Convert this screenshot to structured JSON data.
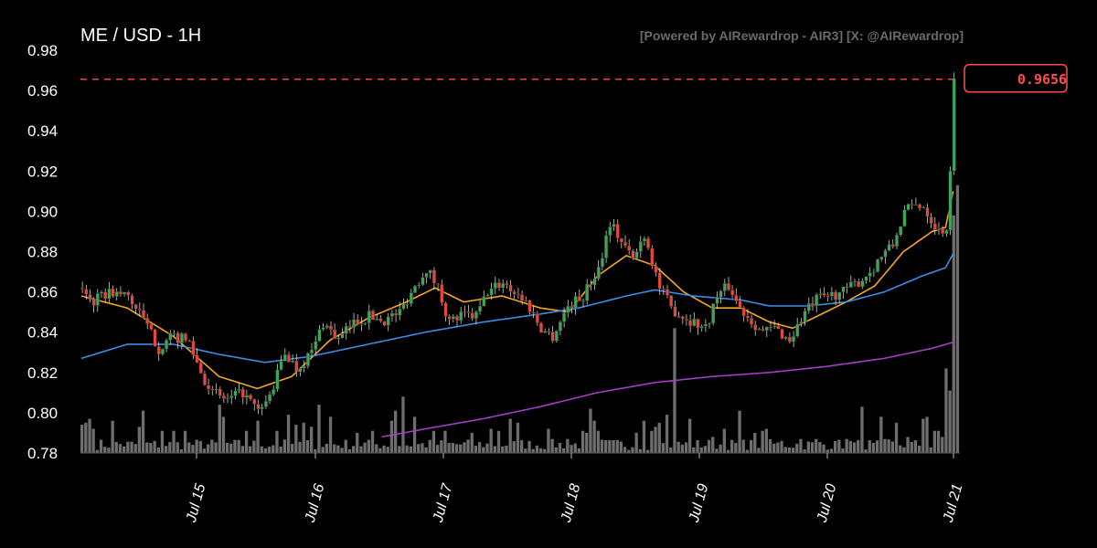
{
  "header": {
    "title": "ME / USD - 1H",
    "credit": "[Powered by AIRewardrop - AIR3] [X: @AIRewardrop]"
  },
  "colors": {
    "up": "#3fa35a",
    "down": "#e0493b",
    "volume": "#6e6e6e",
    "ma_fast": "#f5a623",
    "ma_mid": "#3a8ee6",
    "ma_slow": "#a33fc4",
    "last_price": "#ff4d4d"
  },
  "chart_data": {
    "type": "candlestick",
    "title": "ME / USD - 1H",
    "ylim": [
      0.78,
      0.98
    ],
    "y_ticks": [
      "0.98",
      "0.96",
      "0.94",
      "0.92",
      "0.90",
      "0.88",
      "0.86",
      "0.84",
      "0.82",
      "0.80",
      "0.78"
    ],
    "x_ticks": [
      "Jul 15",
      "Jul 16",
      "Jul 17",
      "Jul 18",
      "Jul 19",
      "Jul 20",
      "Jul 21"
    ],
    "last_price": "0.9656",
    "close_path": [
      [
        0,
        0.862
      ],
      [
        6,
        0.855
      ],
      [
        14,
        0.86
      ],
      [
        24,
        0.858
      ],
      [
        32,
        0.846
      ],
      [
        40,
        0.832
      ],
      [
        48,
        0.838
      ],
      [
        56,
        0.835
      ],
      [
        62,
        0.82
      ],
      [
        68,
        0.81
      ],
      [
        76,
        0.806
      ],
      [
        84,
        0.81
      ],
      [
        92,
        0.8
      ],
      [
        98,
        0.808
      ],
      [
        106,
        0.83
      ],
      [
        112,
        0.822
      ],
      [
        120,
        0.83
      ],
      [
        126,
        0.845
      ],
      [
        134,
        0.836
      ],
      [
        142,
        0.845
      ],
      [
        150,
        0.848
      ],
      [
        158,
        0.846
      ],
      [
        166,
        0.85
      ],
      [
        172,
        0.86
      ],
      [
        180,
        0.872
      ],
      [
        186,
        0.862
      ],
      [
        192,
        0.845
      ],
      [
        198,
        0.848
      ],
      [
        206,
        0.848
      ],
      [
        212,
        0.86
      ],
      [
        220,
        0.865
      ],
      [
        226,
        0.86
      ],
      [
        232,
        0.855
      ],
      [
        240,
        0.842
      ],
      [
        246,
        0.838
      ],
      [
        254,
        0.853
      ],
      [
        262,
        0.858
      ],
      [
        270,
        0.872
      ],
      [
        276,
        0.895
      ],
      [
        282,
        0.885
      ],
      [
        288,
        0.876
      ],
      [
        294,
        0.889
      ],
      [
        302,
        0.862
      ],
      [
        308,
        0.852
      ],
      [
        314,
        0.848
      ],
      [
        320,
        0.845
      ],
      [
        326,
        0.842
      ],
      [
        332,
        0.858
      ],
      [
        338,
        0.863
      ],
      [
        344,
        0.852
      ],
      [
        350,
        0.846
      ],
      [
        356,
        0.84
      ],
      [
        362,
        0.842
      ],
      [
        370,
        0.836
      ],
      [
        378,
        0.85
      ],
      [
        384,
        0.856
      ],
      [
        390,
        0.858
      ],
      [
        398,
        0.86
      ],
      [
        406,
        0.865
      ],
      [
        412,
        0.87
      ],
      [
        418,
        0.878
      ],
      [
        424,
        0.883
      ],
      [
        430,
        0.9
      ],
      [
        436,
        0.903
      ],
      [
        440,
        0.903
      ],
      [
        444,
        0.896
      ],
      [
        448,
        0.89
      ],
      [
        452,
        0.892
      ],
      [
        454,
        0.92
      ],
      [
        456,
        0.966
      ]
    ],
    "ma_fast": [
      [
        0,
        0.858
      ],
      [
        24,
        0.852
      ],
      [
        48,
        0.838
      ],
      [
        72,
        0.818
      ],
      [
        92,
        0.812
      ],
      [
        110,
        0.818
      ],
      [
        130,
        0.836
      ],
      [
        150,
        0.847
      ],
      [
        170,
        0.855
      ],
      [
        185,
        0.862
      ],
      [
        200,
        0.855
      ],
      [
        220,
        0.858
      ],
      [
        240,
        0.852
      ],
      [
        255,
        0.85
      ],
      [
        270,
        0.868
      ],
      [
        285,
        0.878
      ],
      [
        300,
        0.873
      ],
      [
        315,
        0.86
      ],
      [
        330,
        0.852
      ],
      [
        345,
        0.852
      ],
      [
        360,
        0.845
      ],
      [
        372,
        0.842
      ],
      [
        385,
        0.848
      ],
      [
        400,
        0.855
      ],
      [
        415,
        0.863
      ],
      [
        430,
        0.88
      ],
      [
        445,
        0.89
      ],
      [
        452,
        0.892
      ],
      [
        456,
        0.91
      ]
    ],
    "ma_mid": [
      [
        0,
        0.827
      ],
      [
        24,
        0.834
      ],
      [
        48,
        0.834
      ],
      [
        72,
        0.829
      ],
      [
        96,
        0.825
      ],
      [
        120,
        0.828
      ],
      [
        150,
        0.834
      ],
      [
        180,
        0.84
      ],
      [
        210,
        0.845
      ],
      [
        240,
        0.849
      ],
      [
        260,
        0.852
      ],
      [
        285,
        0.858
      ],
      [
        300,
        0.861
      ],
      [
        320,
        0.858
      ],
      [
        345,
        0.856
      ],
      [
        360,
        0.853
      ],
      [
        380,
        0.853
      ],
      [
        400,
        0.855
      ],
      [
        420,
        0.86
      ],
      [
        440,
        0.868
      ],
      [
        452,
        0.872
      ],
      [
        456,
        0.879
      ]
    ],
    "ma_slow": [
      [
        157,
        0.788
      ],
      [
        180,
        0.792
      ],
      [
        210,
        0.797
      ],
      [
        240,
        0.803
      ],
      [
        270,
        0.81
      ],
      [
        300,
        0.815
      ],
      [
        330,
        0.818
      ],
      [
        360,
        0.82
      ],
      [
        390,
        0.823
      ],
      [
        420,
        0.827
      ],
      [
        445,
        0.832
      ],
      [
        456,
        0.835
      ]
    ],
    "volume": {
      "baseline": 0.78,
      "spikes": [
        [
          1,
          0.794
        ],
        [
          2,
          0.795
        ],
        [
          4,
          0.797
        ],
        [
          6,
          0.792
        ],
        [
          17,
          0.796
        ],
        [
          30,
          0.793
        ],
        [
          32,
          0.801
        ],
        [
          42,
          0.791
        ],
        [
          48,
          0.791
        ],
        [
          55,
          0.791
        ],
        [
          72,
          0.804
        ],
        [
          74,
          0.798
        ],
        [
          86,
          0.791
        ],
        [
          92,
          0.796
        ],
        [
          102,
          0.791
        ],
        [
          108,
          0.799
        ],
        [
          112,
          0.794
        ],
        [
          116,
          0.795
        ],
        [
          120,
          0.793
        ],
        [
          125,
          0.804
        ],
        [
          130,
          0.798
        ],
        [
          144,
          0.79
        ],
        [
          152,
          0.791
        ],
        [
          162,
          0.796
        ],
        [
          165,
          0.801
        ],
        [
          169,
          0.808
        ],
        [
          175,
          0.798
        ],
        [
          185,
          0.791
        ],
        [
          190,
          0.791
        ],
        [
          205,
          0.79
        ],
        [
          214,
          0.792
        ],
        [
          219,
          0.791
        ],
        [
          224,
          0.797
        ],
        [
          228,
          0.795
        ],
        [
          245,
          0.792
        ],
        [
          255,
          0.787
        ],
        [
          262,
          0.791
        ],
        [
          265,
          0.79
        ],
        [
          268,
          0.791
        ],
        [
          270,
          0.791
        ],
        [
          266,
          0.802
        ],
        [
          268,
          0.796
        ],
        [
          290,
          0.79
        ],
        [
          294,
          0.796
        ],
        [
          299,
          0.791
        ],
        [
          301,
          0.793
        ],
        [
          302,
          0.795
        ],
        [
          306,
          0.799
        ],
        [
          310,
          0.842
        ],
        [
          311,
          0.835
        ],
        [
          318,
          0.797
        ],
        [
          330,
          0.788
        ],
        [
          337,
          0.792
        ],
        [
          345,
          0.801
        ],
        [
          352,
          0.79
        ],
        [
          356,
          0.791
        ],
        [
          358,
          0.792
        ],
        [
          366,
          0.786
        ],
        [
          377,
          0.787
        ],
        [
          385,
          0.787
        ],
        [
          394,
          0.786
        ],
        [
          400,
          0.787
        ],
        [
          402,
          0.786
        ],
        [
          408,
          0.803
        ],
        [
          415,
          0.785
        ],
        [
          418,
          0.798
        ],
        [
          427,
          0.795
        ],
        [
          432,
          0.788
        ],
        [
          441,
          0.797
        ],
        [
          443,
          0.798
        ],
        [
          446,
          0.791
        ],
        [
          448,
          0.791
        ],
        [
          451,
          0.788
        ],
        [
          453,
          0.822
        ],
        [
          454,
          0.811
        ],
        [
          457,
          0.898
        ],
        [
          459,
          0.913
        ]
      ]
    }
  }
}
